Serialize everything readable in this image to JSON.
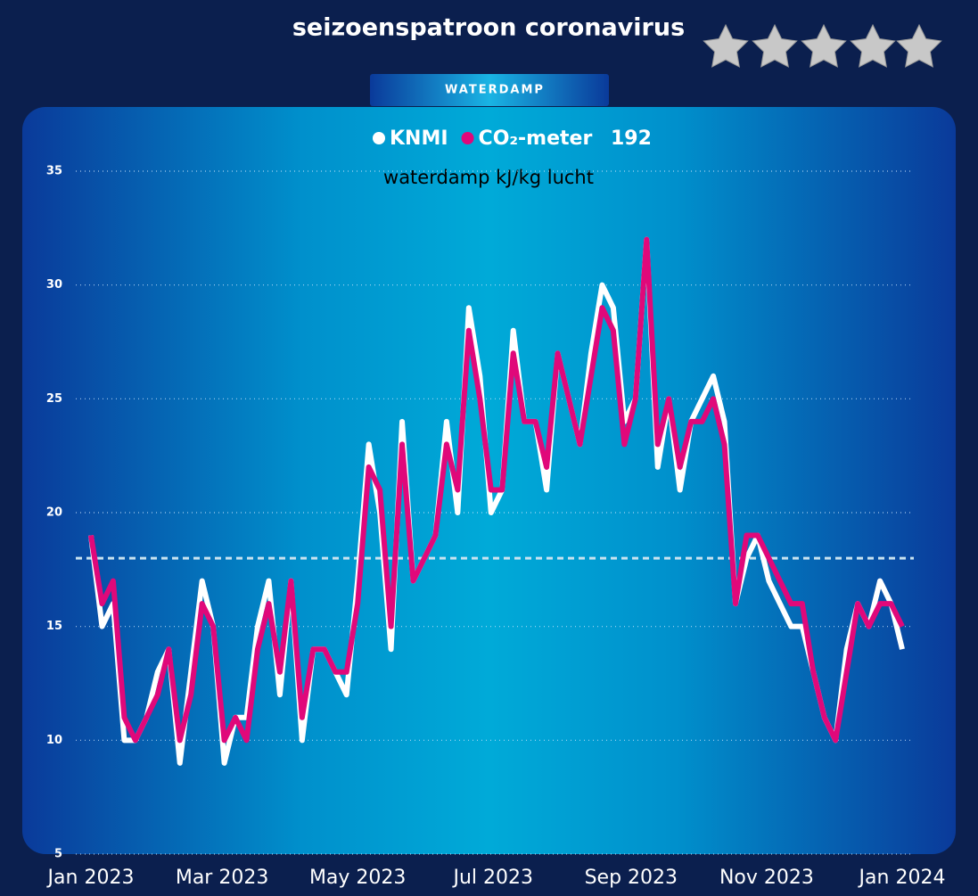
{
  "header": {
    "title": "seizoenspatroon coronavirus",
    "tab": "WATERDAMP"
  },
  "chart_data": {
    "type": "line",
    "subtitle": "waterdamp kJ/kg lucht",
    "legend_annotation": "192",
    "x": [
      0,
      5,
      10,
      15,
      20,
      25,
      30,
      35,
      40,
      45,
      50,
      55,
      60,
      65,
      70,
      75,
      80,
      85,
      90,
      95,
      100,
      105,
      110,
      115,
      120,
      125,
      130,
      135,
      140,
      145,
      150,
      155,
      160,
      165,
      170,
      175,
      180,
      185,
      190,
      195,
      200,
      205,
      210,
      215,
      220,
      225,
      230,
      235,
      240,
      245,
      250,
      255,
      260,
      265,
      270,
      275,
      280,
      285,
      290,
      295,
      300,
      305,
      310,
      315,
      320,
      325,
      330,
      335,
      340,
      345,
      350,
      355,
      360,
      365
    ],
    "xlim": [
      0,
      365
    ],
    "xticks": [
      {
        "value": 0,
        "label": "Jan 2023"
      },
      {
        "value": 59,
        "label": "Mar 2023"
      },
      {
        "value": 120,
        "label": "May 2023"
      },
      {
        "value": 181,
        "label": "Jul 2023"
      },
      {
        "value": 243,
        "label": "Sep 2023"
      },
      {
        "value": 304,
        "label": "Nov 2023"
      },
      {
        "value": 365,
        "label": "Jan 2024"
      }
    ],
    "ylim": [
      5,
      35
    ],
    "yticks": [
      5,
      10,
      15,
      20,
      25,
      30,
      35
    ],
    "grid": true,
    "reference_line": 18,
    "series": [
      {
        "name": "KNMI",
        "color": "#ffffff",
        "values": [
          19,
          15,
          16,
          10,
          10,
          11,
          13,
          14,
          9,
          13,
          17,
          15,
          9,
          11,
          11,
          15,
          17,
          12,
          17,
          10,
          14,
          14,
          13,
          12,
          17,
          23,
          20,
          14,
          24,
          17,
          18,
          19,
          24,
          20,
          29,
          26,
          20,
          21,
          28,
          24,
          24,
          21,
          27,
          25,
          23,
          27,
          30,
          29,
          24,
          25,
          32,
          22,
          25,
          21,
          24,
          25,
          26,
          24,
          16,
          18,
          19,
          17,
          16,
          15,
          15,
          13,
          11,
          10,
          14,
          16,
          15,
          17,
          16,
          14
        ]
      },
      {
        "name": "CO₂-meter",
        "color": "#e0087a",
        "values": [
          19,
          16,
          17,
          11,
          10,
          11,
          12,
          14,
          10,
          12,
          16,
          15,
          10,
          11,
          10,
          14,
          16,
          13,
          17,
          11,
          14,
          14,
          13,
          13,
          16,
          22,
          21,
          15,
          23,
          17,
          18,
          19,
          23,
          21,
          28,
          25,
          21,
          21,
          27,
          24,
          24,
          22,
          27,
          25,
          23,
          26,
          29,
          28,
          23,
          25,
          32,
          23,
          25,
          22,
          24,
          24,
          25,
          23,
          16,
          19,
          19,
          18,
          17,
          16,
          16,
          13,
          11,
          10,
          13,
          16,
          15,
          16,
          16,
          15
        ]
      }
    ]
  }
}
